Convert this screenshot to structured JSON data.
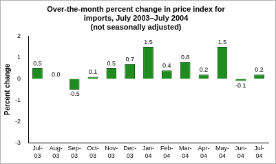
{
  "chart_data": {
    "type": "bar",
    "title": [
      "Over-the-month percent change in price index for",
      "imports, July 2003–July 2004"
    ],
    "subtitle": "(not seasonally adjusted)",
    "y_label": "Percent change",
    "categories": [
      "Jul-03",
      "Aug-03",
      "Sep-03",
      "Oct-03",
      "Nov-03",
      "Dec-03",
      "Jan-04",
      "Feb-04",
      "Mar-04",
      "Apr-04",
      "May-04",
      "Jun-04",
      "Jul-04"
    ],
    "values": [
      0.5,
      0.0,
      -0.5,
      0.1,
      0.5,
      0.7,
      1.5,
      0.4,
      0.8,
      0.2,
      1.5,
      -0.1,
      0.2
    ],
    "value_labels": [
      "0.5",
      "0.0",
      "-0.5",
      "0.1",
      "0.5",
      "0.7",
      "1.5",
      "0.4",
      "0.8",
      "0.2",
      "1.5",
      "-0.1",
      "0.2"
    ],
    "color": "#1e8c1e",
    "ylim": [
      -3,
      2
    ],
    "yticks": [
      -3,
      -2,
      -1,
      0,
      1,
      2
    ],
    "grid": false,
    "data_labels": true
  }
}
